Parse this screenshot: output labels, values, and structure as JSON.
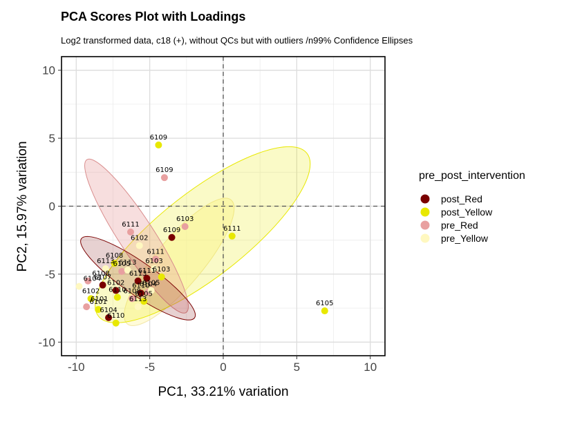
{
  "colors": {
    "post_Red": "#7a0000",
    "post_Yellow": "#e8e800",
    "pre_Red": "#e8a0a0",
    "pre_Yellow": "#fff8c0"
  },
  "chart_data": {
    "type": "scatter",
    "title": "PCA Scores Plot with Loadings",
    "subtitle": "Log2 transformed data, c18 (+), without QCs but with outliers /n99% Confidence Ellipses",
    "xlabel": "PC1, 33.21% variation",
    "ylabel": "PC2, 15.97% variation",
    "xlim": [
      -11,
      11
    ],
    "ylim": [
      -11,
      11
    ],
    "xticks": [
      -10,
      -5,
      0,
      5,
      10
    ],
    "yticks": [
      -10,
      -5,
      0,
      5,
      10
    ],
    "xtick_labels": [
      "-10",
      "-5",
      "0",
      "5",
      "10"
    ],
    "ytick_labels": [
      "-10",
      "-5",
      "0",
      "5",
      "10"
    ],
    "grid": true,
    "reference_lines": {
      "x": 0,
      "y": 0,
      "style": "dashed"
    },
    "legend": {
      "title": "pre_post_intervention",
      "position": "right",
      "entries": [
        "post_Red",
        "post_Yellow",
        "pre_Red",
        "pre_Yellow"
      ]
    },
    "series": [
      {
        "name": "post_Red",
        "points": [
          {
            "x": -3.5,
            "y": -2.3,
            "label": "6109"
          },
          {
            "x": -8.2,
            "y": -5.8,
            "label": "6107"
          },
          {
            "x": -7.3,
            "y": -6.2,
            "label": "6102"
          },
          {
            "x": -5.2,
            "y": -5.3,
            "label": "6111"
          },
          {
            "x": -5.8,
            "y": -5.5,
            "label": "6113"
          },
          {
            "x": -5.6,
            "y": -6.4,
            "label": "6110"
          },
          {
            "x": -7.8,
            "y": -8.2,
            "label": "6104"
          }
        ]
      },
      {
        "name": "post_Yellow",
        "points": [
          {
            "x": -4.4,
            "y": 4.5,
            "label": "6109"
          },
          {
            "x": 0.6,
            "y": -2.2,
            "label": "6111"
          },
          {
            "x": 6.9,
            "y": -7.7,
            "label": "6105"
          },
          {
            "x": -7.4,
            "y": -4.2,
            "label": "6108"
          },
          {
            "x": -4.2,
            "y": -5.2,
            "label": "6103"
          },
          {
            "x": -5.4,
            "y": -7.0,
            "label": "6105"
          },
          {
            "x": -9.0,
            "y": -6.8,
            "label": "6102"
          },
          {
            "x": -8.5,
            "y": -7.6,
            "label": "6101"
          },
          {
            "x": -7.3,
            "y": -8.6,
            "label": "6110"
          },
          {
            "x": -7.2,
            "y": -6.7,
            "label": "6110"
          }
        ]
      },
      {
        "name": "pre_Red",
        "points": [
          {
            "x": -4.0,
            "y": 2.1,
            "label": "6109"
          },
          {
            "x": -2.6,
            "y": -1.5,
            "label": "6103"
          },
          {
            "x": -6.3,
            "y": -1.9,
            "label": "6111"
          },
          {
            "x": -9.2,
            "y": -5.5,
            "label": "6108"
          },
          {
            "x": -6.2,
            "y": -6.8,
            "label": "6108"
          },
          {
            "x": -9.3,
            "y": -7.4,
            "label": "6101"
          },
          {
            "x": -4.6,
            "y": -3.9,
            "label": "6111"
          },
          {
            "x": -6.9,
            "y": -4.8,
            "label": "6105"
          },
          {
            "x": -5.1,
            "y": -6.3,
            "label": "6104"
          }
        ]
      },
      {
        "name": "pre_Yellow",
        "points": [
          {
            "x": -5.7,
            "y": -2.9,
            "label": "6102"
          },
          {
            "x": -9.8,
            "y": -5.9,
            "label": "6104"
          },
          {
            "x": -6.5,
            "y": -4.7,
            "label": "6113"
          },
          {
            "x": -4.7,
            "y": -4.6,
            "label": "6103"
          },
          {
            "x": -5.8,
            "y": -7.4,
            "label": "6113"
          },
          {
            "x": -4.9,
            "y": -6.2,
            "label": "6105"
          },
          {
            "x": -8.0,
            "y": -4.6,
            "label": "6113"
          }
        ]
      }
    ],
    "ellipses": [
      {
        "name": "pre_Yellow",
        "cx": -3.0,
        "cy": -4.1,
        "rx": 5.5,
        "ry": 1.6,
        "angle": -50
      },
      {
        "name": "post_Yellow",
        "cx": -1.4,
        "cy": -2.1,
        "rx": 9.0,
        "ry": 2.9,
        "angle": -38
      },
      {
        "name": "pre_Red",
        "cx": -5.9,
        "cy": -2.2,
        "rx": 6.2,
        "ry": 1.2,
        "angle": 57
      },
      {
        "name": "post_Red",
        "cx": -5.8,
        "cy": -5.3,
        "rx": 4.7,
        "ry": 1.1,
        "angle": 35
      }
    ]
  }
}
